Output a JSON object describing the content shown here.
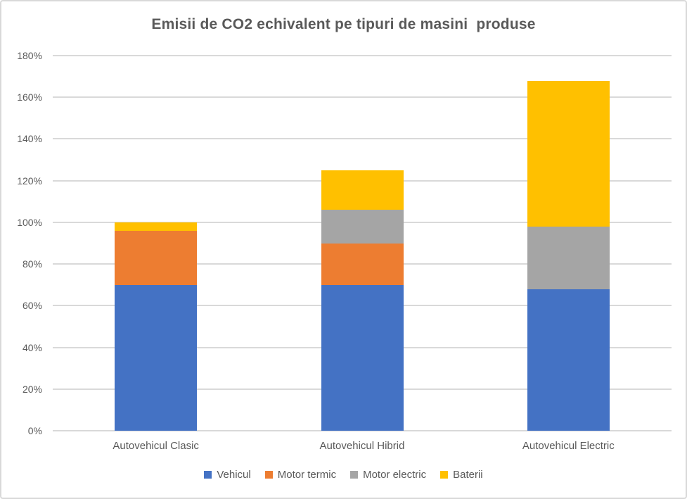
{
  "window": {
    "background": "#FFFFFF",
    "border_color": "#D9D9D9"
  },
  "chart_data": {
    "type": "bar",
    "stacked": true,
    "title": "Emisii de CO2 echivalent pe tipuri de masini  produse",
    "categories": [
      "Autovehicul Clasic",
      "Autovehicul Hibrid",
      "Autovehicul Electric"
    ],
    "series": [
      {
        "name": "Vehicul",
        "color": "#4472C4",
        "values": [
          70,
          70,
          68
        ]
      },
      {
        "name": "Motor termic",
        "color": "#ED7D31",
        "values": [
          26,
          20,
          0
        ]
      },
      {
        "name": "Motor electric",
        "color": "#A5A5A5",
        "values": [
          0,
          16,
          30
        ]
      },
      {
        "name": "Baterii",
        "color": "#FFC000",
        "values": [
          4,
          19,
          70
        ]
      }
    ],
    "xlabel": "",
    "ylabel": "",
    "ylim": [
      0,
      180
    ],
    "ytick_step": 20,
    "ytick_labels": [
      "0%",
      "20%",
      "40%",
      "60%",
      "80%",
      "100%",
      "120%",
      "140%",
      "160%",
      "180%"
    ],
    "grid": true,
    "legend_position": "bottom",
    "text_color": "#595959",
    "grid_color": "#D9D9D9"
  }
}
